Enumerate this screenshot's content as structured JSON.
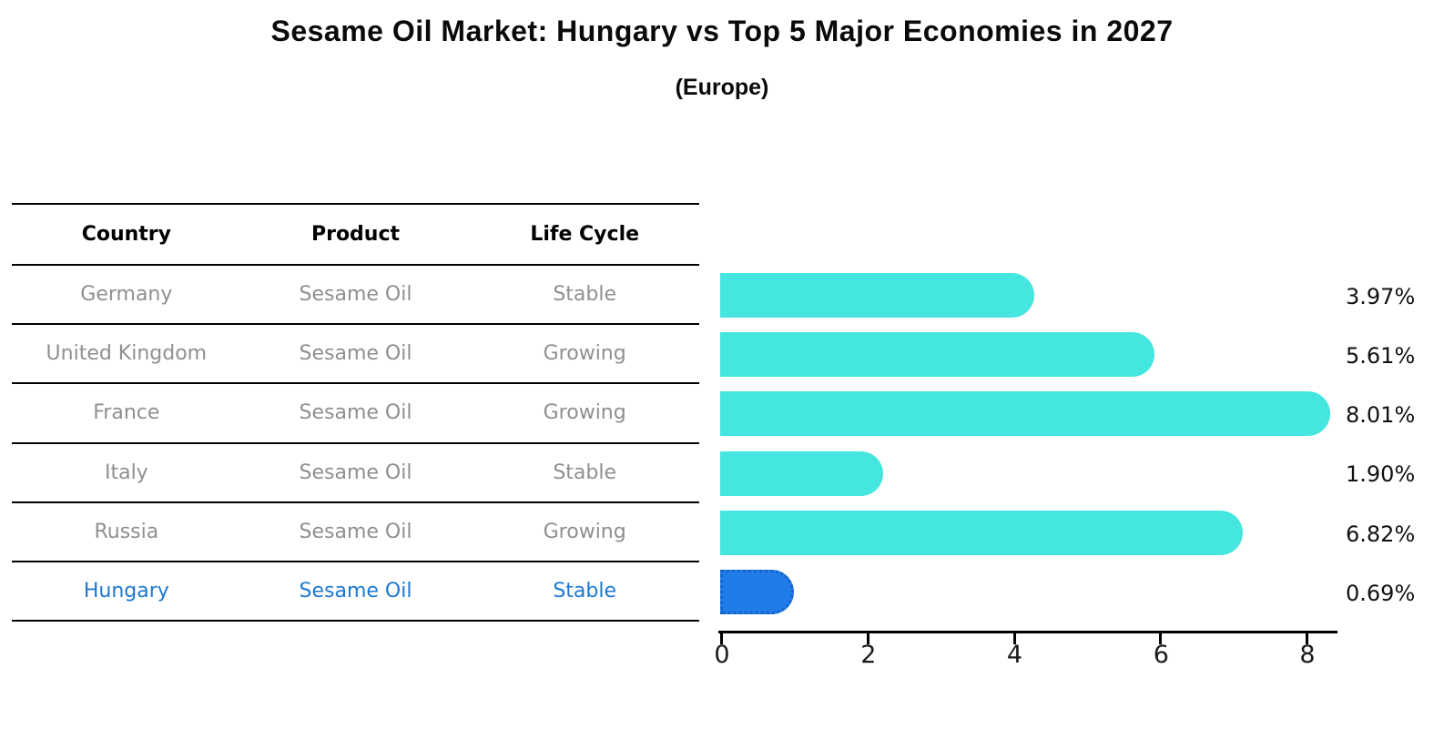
{
  "title": "Sesame Oil Market: Hungary vs Top 5 Major Economies in 2027",
  "subtitle": "(Europe)",
  "table": {
    "headers": [
      "Country",
      "Product",
      "Life Cycle"
    ],
    "rows": [
      {
        "country": "Germany",
        "product": "Sesame Oil",
        "life_cycle": "Stable",
        "highlighted": false
      },
      {
        "country": "United Kingdom",
        "product": "Sesame Oil",
        "life_cycle": "Growing",
        "highlighted": false
      },
      {
        "country": "France",
        "product": "Sesame Oil",
        "life_cycle": "Growing",
        "highlighted": false
      },
      {
        "country": "Italy",
        "product": "Sesame Oil",
        "life_cycle": "Stable",
        "highlighted": false
      },
      {
        "country": "Russia",
        "product": "Sesame Oil",
        "life_cycle": "Growing",
        "highlighted": false
      },
      {
        "country": "Hungary",
        "product": "Sesame Oil",
        "life_cycle": "Stable",
        "highlighted": true
      }
    ]
  },
  "chart_data": {
    "type": "bar",
    "orientation": "horizontal",
    "categories": [
      "Germany",
      "United Kingdom",
      "France",
      "Italy",
      "Russia",
      "Hungary"
    ],
    "values": [
      3.97,
      5.61,
      8.01,
      1.9,
      6.82,
      0.69
    ],
    "labels": [
      "3.97%",
      "5.61%",
      "8.01%",
      "1.90%",
      "6.82%",
      "0.69%"
    ],
    "x_ticks": [
      "0",
      "2",
      "4",
      "6",
      "8"
    ],
    "xlim": [
      0,
      8.5
    ],
    "grid": false,
    "legend": false,
    "bar_color": "#45E6E0",
    "highlight_color": "#1F7CE8",
    "highlight_border_color": "#1864C8",
    "highlight_text_color": "#1e78d0",
    "highlight_index": 5
  }
}
